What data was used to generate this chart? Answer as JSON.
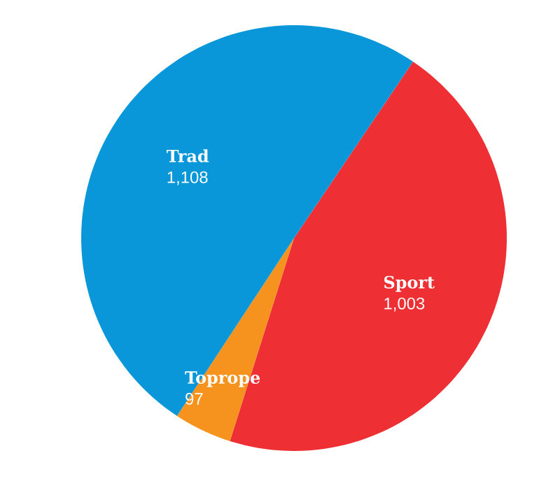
{
  "chart_data": {
    "type": "pie",
    "categories": [
      "Sport",
      "Toprope",
      "Trad"
    ],
    "values": [
      1003,
      97,
      1108
    ],
    "colors": [
      "#ee3035",
      "#f6921e",
      "#0a97d9"
    ],
    "data_labels": true,
    "value_labels": [
      "1,003",
      "97",
      "1,108"
    ]
  }
}
